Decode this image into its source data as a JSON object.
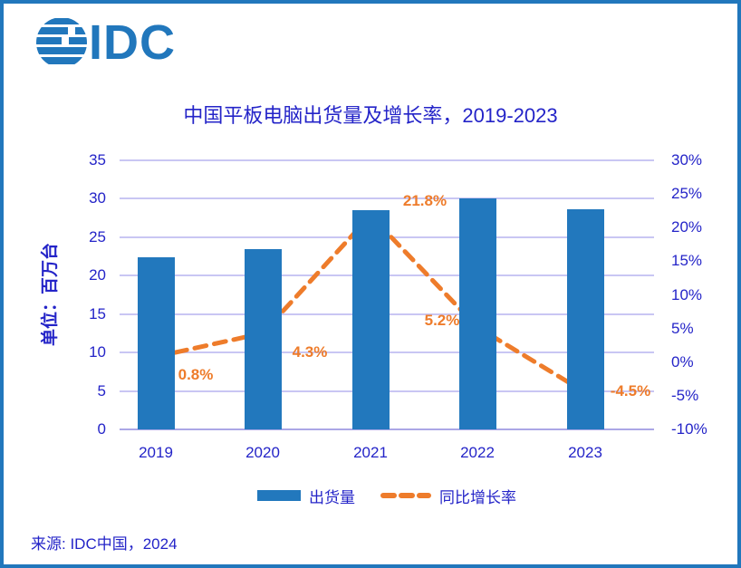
{
  "logo": {
    "text": "IDC"
  },
  "title": "中国平板电脑出货量及增长率，2019-2023",
  "source": "来源: IDC中国，2024",
  "colors": {
    "bar": "#2278BD",
    "line": "#EE7C2B",
    "text": "#2424C8",
    "grid": "#C9C6F3",
    "frame": "#2177BC"
  },
  "chart_data": {
    "type": "bar",
    "subtype": "bar-line-combo",
    "title": "中国平板电脑出货量及增长率，2019-2023",
    "categories": [
      "2019",
      "2020",
      "2021",
      "2022",
      "2023"
    ],
    "series": [
      {
        "name": "出货量",
        "type": "bar",
        "axis": "left",
        "values": [
          22.4,
          23.4,
          28.5,
          30.0,
          28.6
        ]
      },
      {
        "name": "同比增长率",
        "type": "line",
        "axis": "right",
        "values": [
          0.8,
          4.3,
          21.8,
          5.2,
          -4.5
        ],
        "point_labels": [
          "0.8%",
          "4.3%",
          "21.8%",
          "5.2%",
          "-4.5%"
        ]
      }
    ],
    "left_axis": {
      "label": "单位：百万台",
      "ticks": [
        0,
        5,
        10,
        15,
        20,
        25,
        30,
        35
      ],
      "range": [
        0,
        35
      ]
    },
    "right_axis": {
      "ticks": [
        -10,
        -5,
        0,
        5,
        10,
        15,
        20,
        25,
        30
      ],
      "suffix": "%",
      "range": [
        -10,
        30
      ]
    },
    "legend": [
      "出货量",
      "同比增长率"
    ],
    "grid": true,
    "legend_position": "bottom"
  }
}
